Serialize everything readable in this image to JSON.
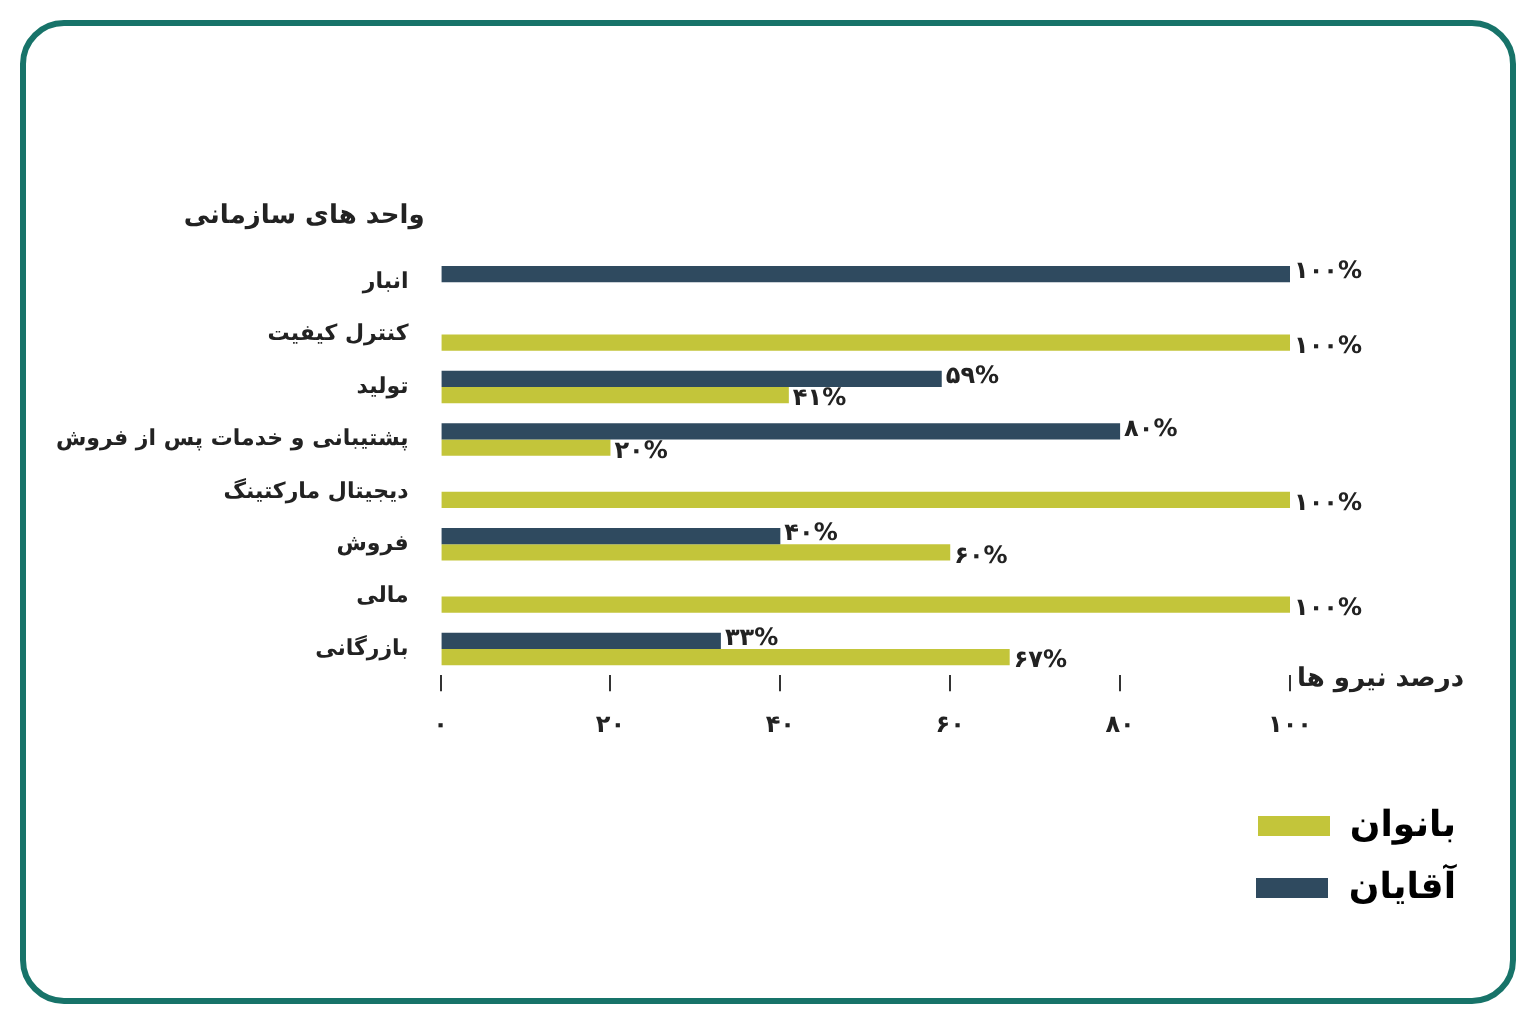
{
  "chart_data": {
    "type": "bar",
    "orientation": "horizontal",
    "ylabel": "واحد های سازمانی",
    "xlabel": "درصد نیرو ها",
    "categories": [
      "انبار",
      "کنترل کیفیت",
      "تولید",
      "پشتیبانی و خدمات پس از فروش",
      "دیجیتال مارکتینگ",
      "فروش",
      "مالی",
      "بازرگانی"
    ],
    "series": [
      {
        "name": "آقایان",
        "color": "#2f4a5f",
        "values": [
          100,
          null,
          59,
          80,
          null,
          40,
          null,
          33
        ],
        "value_labels": [
          "۱۰۰%",
          null,
          "۵۹%",
          "۸۰%",
          null,
          "۴۰%",
          null,
          "۳۳%"
        ]
      },
      {
        "name": "بانوان",
        "color": "#c3c53a",
        "values": [
          null,
          100,
          41,
          20,
          100,
          60,
          100,
          67
        ],
        "value_labels": [
          null,
          "۱۰۰%",
          "۴۱%",
          "۲۰%",
          "۱۰۰%",
          "۶۰%",
          "۱۰۰%",
          "۶۷%"
        ]
      }
    ],
    "xlim": [
      0,
      100
    ],
    "xticks": [
      {
        "value": 0,
        "label": "۰"
      },
      {
        "value": 20,
        "label": "۲۰"
      },
      {
        "value": 40,
        "label": "۴۰"
      },
      {
        "value": 60,
        "label": "۶۰"
      },
      {
        "value": 80,
        "label": "۸۰"
      },
      {
        "value": 100,
        "label": "۱۰۰"
      }
    ],
    "grid": false,
    "legend": "bottom right"
  }
}
